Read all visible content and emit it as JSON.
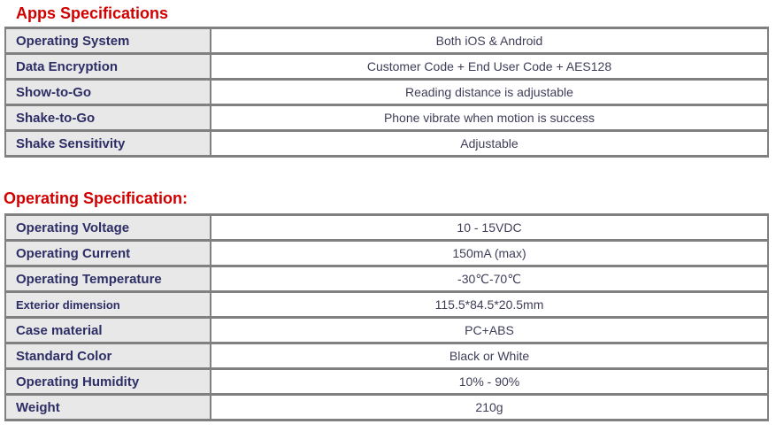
{
  "document": {
    "colors": {
      "heading": "#d10000",
      "label_text": "#2e2e66",
      "value_text": "#3e3e58",
      "label_bg": "#e8e8e8",
      "border": "#808080"
    },
    "sections": [
      {
        "title": "Apps Specifications",
        "rows": [
          {
            "label": "Operating System",
            "value": "Both iOS & Android"
          },
          {
            "label": "Data Encryption",
            "value": "Customer Code + End User Code + AES128"
          },
          {
            "label": "Show-to-Go",
            "value": "Reading distance is adjustable"
          },
          {
            "label": "Shake-to-Go",
            "value": "Phone vibrate when motion is success"
          },
          {
            "label": "Shake Sensitivity",
            "value": "Adjustable"
          }
        ]
      },
      {
        "title": "Operating Specification:",
        "rows": [
          {
            "label": "Operating Voltage",
            "value": "10 - 15VDC"
          },
          {
            "label": "Operating Current",
            "value": "150mA (max)"
          },
          {
            "label": "Operating Temperature",
            "value": "-30℃-70℃"
          },
          {
            "label": "Exterior dimension",
            "value": "115.5*84.5*20.5mm"
          },
          {
            "label": "Case material",
            "value": "PC+ABS"
          },
          {
            "label": "Standard Color",
            "value": "Black or White"
          },
          {
            "label": "Operating Humidity",
            "value": "10% - 90%"
          },
          {
            "label": "Weight",
            "value": "210g"
          }
        ]
      }
    ]
  }
}
